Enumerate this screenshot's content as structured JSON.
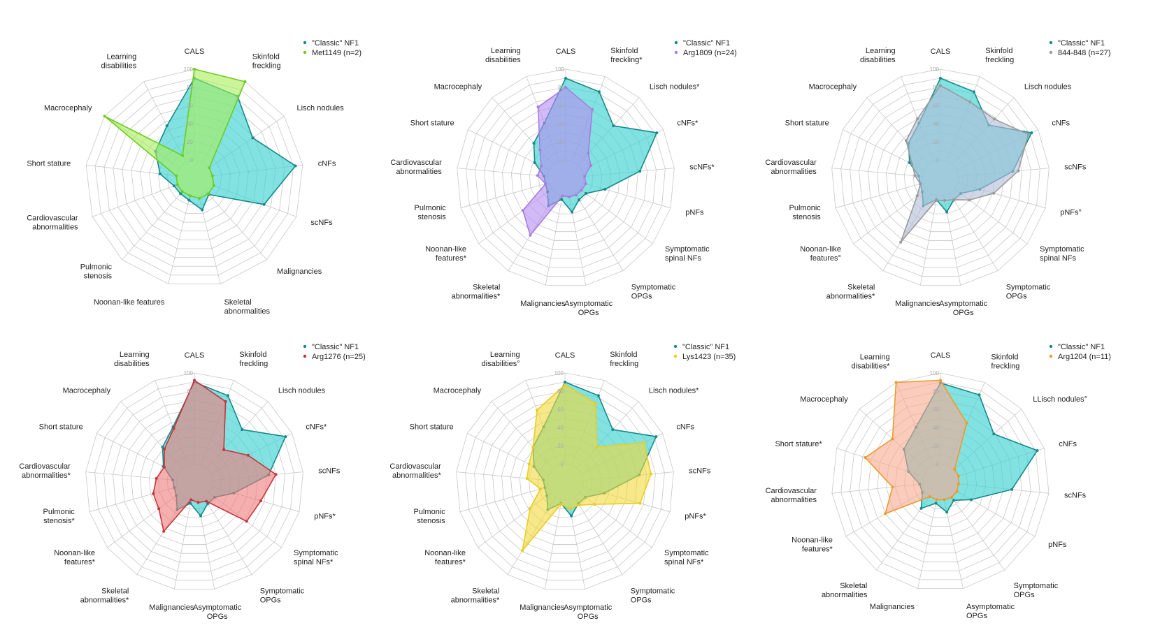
{
  "chart_data": [
    {
      "type": "radar",
      "ylim": [
        -20,
        100
      ],
      "ticks": [
        "0",
        "20",
        "40",
        "60",
        "80",
        "100"
      ],
      "grid": true,
      "legend_position": "top-right",
      "axes": [
        "CALS",
        "Skinfold\nfreckling",
        "Lisch nodules",
        "cNFs",
        "scNFs",
        "Malignancies",
        "Skeletal\nabnormalities",
        "Noonan-like features",
        "Pulmonic\nstenosis",
        "Cardiovascular\nabnormalities",
        "Short stature",
        "Macrocephaly",
        "Learning\ndisabilities"
      ],
      "series": [
        {
          "name": "\"Classic\" NF1",
          "color": "#17898a",
          "fill": "#3fd3d3",
          "values": [
            90,
            82,
            58,
            92,
            62,
            4,
            16,
            5,
            3,
            4,
            18,
            32,
            45
          ]
        },
        {
          "name": "Met1149 (n=2)",
          "color": "#6ccd1e",
          "fill": "#a6ee5a",
          "values": [
            100,
            100,
            0,
            0,
            3,
            3,
            3,
            0,
            0,
            0,
            0,
            100,
            8
          ]
        }
      ]
    },
    {
      "type": "radar",
      "ylim": [
        -20,
        100
      ],
      "ticks": [
        "0",
        "20",
        "40",
        "60",
        "80",
        "100"
      ],
      "grid": true,
      "legend_position": "top-right",
      "axes": [
        "CALS",
        "Skinfold\nfreckling*",
        "Lisch nodules*",
        "cNFs*",
        "scNFs*",
        "pNFs",
        "Symptomatic\nspinal NFs",
        "Symptomatic\nOPGs",
        "Asymptomatic\nOPGs",
        "Malignancies",
        "Skeletal\nabnormalities*",
        "Noonan-like\nfeatures*",
        "Pulmonic\nstenosis",
        "Cardiovascular\nabnormalities",
        "Short stature",
        "Macrocephaly",
        "Learning\ndisabilities"
      ],
      "series": [
        {
          "name": "\"Classic\" NF1",
          "color": "#17898a",
          "fill": "#3fd3d3",
          "values": [
            90,
            82,
            58,
            92,
            62,
            25,
            8,
            8,
            18,
            4,
            16,
            5,
            3,
            4,
            18,
            32,
            45
          ]
        },
        {
          "name": "Arg1809 (n=24)",
          "color": "#a77de0",
          "fill": "#b48cf0",
          "values": [
            80,
            61,
            17,
            11,
            1,
            3,
            2,
            2,
            1,
            0,
            54,
            39,
            3,
            11,
            10,
            22,
            64
          ]
        }
      ]
    },
    {
      "type": "radar",
      "ylim": [
        -20,
        100
      ],
      "ticks": [
        "0",
        "20",
        "40",
        "60",
        "80",
        "100"
      ],
      "grid": true,
      "legend_position": "top-right",
      "axes": [
        "CALS",
        "Skinfold\nfreckling",
        "Lisch nodules",
        "cNFs",
        "scNFs",
        "pNFs°",
        "Symptomatic\nspinal NFs",
        "Symptomatic\nOPGs",
        "Asymptomatic\nOPGs",
        "Malignancies",
        "Skeletal\nabnormalities*",
        "Noonan-like\nfeatures°",
        "Pulmonic\nstenosis",
        "Cardiovascular\nabnormalities",
        "Short stature",
        "Macrocephaly",
        "Learning\ndisabilities"
      ],
      "series": [
        {
          "name": "\"Classic\" NF1",
          "color": "#17898a",
          "fill": "#3fd3d3",
          "values": [
            90,
            82,
            59,
            92,
            60,
            25,
            8,
            8,
            18,
            4,
            16,
            5,
            3,
            4,
            18,
            32,
            45
          ]
        },
        {
          "name": "844-848 (n=27)",
          "color": "#9a9a9a",
          "fill": "#b4bcd8",
          "values": [
            82,
            70,
            68,
            88,
            66,
            41,
            20,
            8,
            5,
            5,
            63,
            12,
            3,
            8,
            15,
            36,
            50
          ]
        }
      ]
    },
    {
      "type": "radar",
      "ylim": [
        -20,
        100
      ],
      "ticks": [
        "0",
        "20",
        "40",
        "60",
        "80",
        "100"
      ],
      "grid": true,
      "legend_position": "top-right",
      "axes": [
        "CALS",
        "Skinfold\nfreckling",
        "Lisch nodules",
        "cNFs*",
        "scNFs",
        "pNFs*",
        "Symptomatic\nspinal NFs*",
        "Symptomatic\nOPGs",
        "Asymptomatic\nOPGs",
        "Malignancies",
        "Skeletal\nabnormalities*",
        "Noonan-like\nfeatures*",
        "Pulmonic\nstenosis*",
        "Cardiovascular\nabnormalities*",
        "Short stature",
        "Macrocephaly",
        "Learning\ndisabilities"
      ],
      "series": [
        {
          "name": "\"Classic\" NF1",
          "color": "#17898a",
          "fill": "#3fd3d3",
          "values": [
            90,
            82,
            58,
            92,
            62,
            25,
            8,
            8,
            18,
            4,
            16,
            5,
            3,
            4,
            18,
            32,
            45
          ]
        },
        {
          "name": "Arg1276 (n=25)",
          "color": "#c8323a",
          "fill": "#f07a7a",
          "values": [
            92,
            75,
            28,
            46,
            70,
            56,
            52,
            5,
            3,
            0,
            44,
            29,
            27,
            22,
            17,
            29,
            43
          ]
        }
      ]
    },
    {
      "type": "radar",
      "ylim": [
        -20,
        100
      ],
      "ticks": [
        "0",
        "20",
        "40",
        "60",
        "80",
        "100"
      ],
      "grid": true,
      "legend_position": "top-right",
      "axes": [
        "CALS",
        "Skinfold\nfreckling",
        "Lisch nodules*",
        "cNFs",
        "scNFs",
        "pNFs*",
        "Symptomatic\nspinal NFs*",
        "Symptomatic\nOPGs",
        "Asymptomatic\nOPGs",
        "Malignancies",
        "Skeletal\nabnormalities*",
        "Noonan-like\nfeatures*",
        "Pulmonic\nstenosis",
        "Cardiovascular\nabnormalities*",
        "Short stature",
        "Macrocephaly",
        "Learning\ndisabilities°"
      ],
      "series": [
        {
          "name": "\"Classic\" NF1",
          "color": "#17898a",
          "fill": "#3fd3d3",
          "values": [
            90,
            82,
            58,
            92,
            62,
            25,
            8,
            8,
            18,
            4,
            16,
            5,
            3,
            4,
            18,
            32,
            45
          ]
        },
        {
          "name": "Lys1423 (n=35)",
          "color": "#eccd1c",
          "fill": "#f2d83a",
          "values": [
            87,
            73,
            32,
            77,
            75,
            66,
            21,
            10,
            10,
            5,
            69,
            28,
            8,
            22,
            24,
            32,
            65
          ]
        }
      ]
    },
    {
      "type": "radar",
      "ylim": [
        -20,
        100
      ],
      "ticks": [
        "0",
        "20",
        "40",
        "60",
        "80",
        "100"
      ],
      "grid": true,
      "legend_position": "top-right",
      "axes": [
        "CALS",
        "Skinfold\nfreckling",
        "LLisch nodules°",
        "cNFs",
        "scNFs",
        "pNFs",
        "Symptomatic\nOPGs",
        "Asymptomatic\nOPGs",
        "Malignancies",
        "Skeletal\nabnormalities",
        "Noonan-like\nfeatures*",
        "Cardiovascular\nabnormalities",
        "Short stature*",
        "Macrocephaly",
        "Learning\ndisabilities*"
      ],
      "series": [
        {
          "name": "\"Classic\" NF1",
          "color": "#17898a",
          "fill": "#3fd3d3",
          "values": [
            89,
            85,
            59,
            92,
            59,
            19,
            5,
            14,
            4,
            16,
            3,
            3,
            17,
            34,
            46
          ]
        },
        {
          "name": "Arg1204 (n=11)",
          "color": "#ee9a2a",
          "fill": "#f8a890",
          "values": [
            92,
            51,
            1,
            1,
            0,
            1,
            1,
            0,
            0,
            0,
            50,
            33,
            67,
            51,
            100
          ]
        }
      ]
    }
  ]
}
